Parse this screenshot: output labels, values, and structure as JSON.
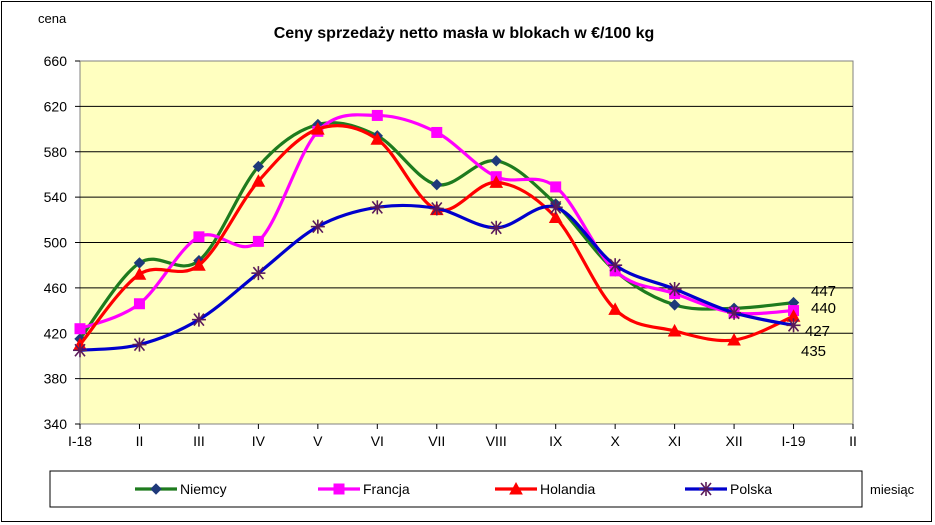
{
  "chart_data": {
    "type": "line",
    "title": "Ceny sprzedaży netto masła w blokach w €/100 kg",
    "ylabel": "cena",
    "xlabel": "miesiąc",
    "ylim": [
      340,
      660
    ],
    "yticks": [
      340,
      380,
      420,
      460,
      500,
      540,
      580,
      620,
      660
    ],
    "categories": [
      "I-18",
      "II",
      "III",
      "IV",
      "V",
      "VI",
      "VII",
      "VIII",
      "IX",
      "X",
      "XI",
      "XII",
      "I-19",
      "II"
    ],
    "grid": true,
    "plot_background": "#FFFFC0",
    "legend_position": "bottom",
    "series": [
      {
        "name": "Niemcy",
        "color": "#1E7B1E",
        "marker": "diamond",
        "values": [
          415,
          482,
          484,
          567,
          604,
          594,
          551,
          572,
          534,
          475,
          445,
          442,
          447,
          null
        ]
      },
      {
        "name": "Francja",
        "color": "#FF00FF",
        "marker": "square",
        "values": [
          424,
          446,
          505,
          501,
          598,
          612,
          597,
          558,
          549,
          475,
          455,
          438,
          440,
          null
        ]
      },
      {
        "name": "Holandia",
        "color": "#FF0000",
        "marker": "triangle",
        "values": [
          410,
          472,
          480,
          554,
          600,
          591,
          529,
          553,
          522,
          441,
          422,
          414,
          435,
          null
        ]
      },
      {
        "name": "Polska",
        "color": "#0000CC",
        "marker": "star",
        "values": [
          405,
          410,
          432,
          473,
          514,
          531,
          530,
          513,
          531,
          480,
          459,
          438,
          427,
          null
        ]
      }
    ],
    "data_labels": [
      "447",
      "440",
      "427",
      "435"
    ]
  }
}
